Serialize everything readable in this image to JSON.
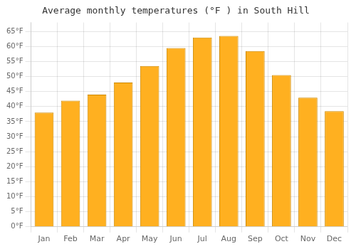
{
  "chart_data": {
    "type": "bar",
    "title": "Average monthly temperatures (°F ) in South Hill",
    "categories": [
      "Jan",
      "Feb",
      "Mar",
      "Apr",
      "May",
      "Jun",
      "Jul",
      "Aug",
      "Sep",
      "Oct",
      "Nov",
      "Dec"
    ],
    "values": [
      38,
      42,
      44,
      48,
      53.5,
      59.5,
      63,
      63.5,
      58.5,
      50.5,
      43,
      38.5
    ],
    "color": "#FFB020",
    "ylim": [
      0,
      68
    ],
    "yticks": [
      {
        "value": 0,
        "label": "0°F"
      },
      {
        "value": 5,
        "label": "5°F"
      },
      {
        "value": 10,
        "label": "10°F"
      },
      {
        "value": 15,
        "label": "15°F"
      },
      {
        "value": 20,
        "label": "20°F"
      },
      {
        "value": 25,
        "label": "25°F"
      },
      {
        "value": 30,
        "label": "30°F"
      },
      {
        "value": 35,
        "label": "35°F"
      },
      {
        "value": 40,
        "label": "40°F"
      },
      {
        "value": 45,
        "label": "45°F"
      },
      {
        "value": 50,
        "label": "50°F"
      },
      {
        "value": 55,
        "label": "55°F"
      },
      {
        "value": 60,
        "label": "60°F"
      },
      {
        "value": 65,
        "label": "65°F"
      }
    ],
    "grid": true
  }
}
